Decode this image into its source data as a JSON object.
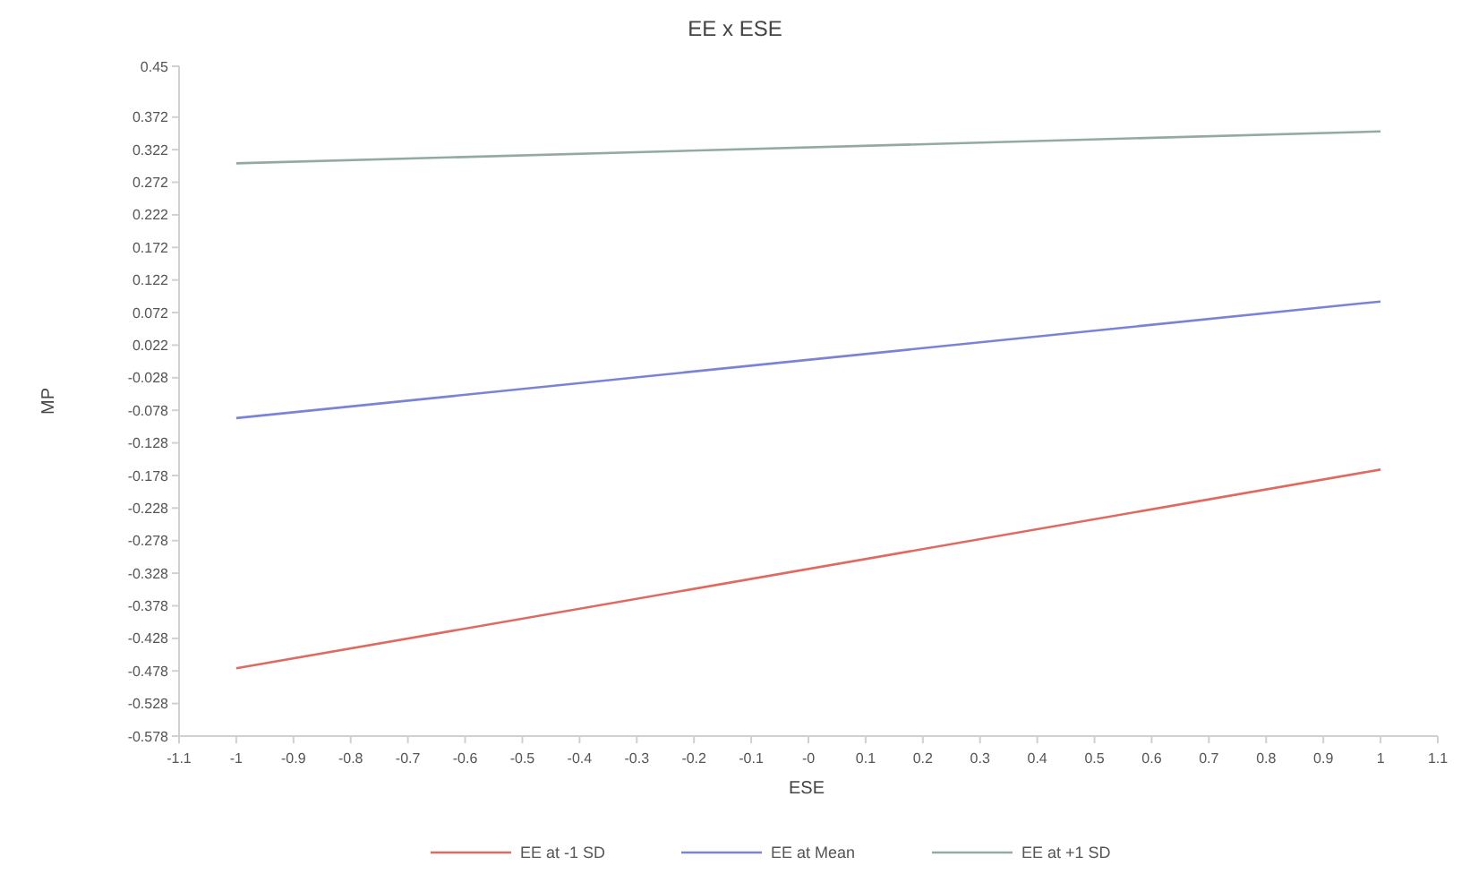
{
  "chart_data": {
    "type": "line",
    "title": "EE x ESE",
    "xlabel": "ESE",
    "ylabel": "MP",
    "x": [
      -1,
      1
    ],
    "series": [
      {
        "name": "EE at -1 SD",
        "color": "#e06a62",
        "values": [
          -0.474,
          -0.169
        ]
      },
      {
        "name": "EE at Mean",
        "color": "#7b83d6",
        "values": [
          -0.09,
          0.089
        ]
      },
      {
        "name": "EE at +1 SD",
        "color": "#93aaa3",
        "values": [
          0.301,
          0.35
        ]
      }
    ],
    "xlim": [
      -1.1,
      1.1
    ],
    "xticks": [
      -1.1,
      -1,
      -0.9,
      -0.8,
      -0.7,
      -0.6,
      -0.5,
      -0.4,
      -0.3,
      -0.2,
      -0.1,
      {
        "value": 0,
        "label": "-0"
      },
      0.1,
      0.2,
      0.3,
      0.4,
      0.5,
      0.6,
      0.7,
      0.8,
      0.9,
      1,
      1.1
    ],
    "ylim": [
      -0.578,
      0.45
    ],
    "yticks": [
      0.45,
      0.372,
      0.322,
      0.272,
      0.222,
      0.172,
      0.122,
      0.072,
      0.022,
      -0.028,
      -0.078,
      -0.128,
      -0.178,
      -0.228,
      -0.278,
      -0.328,
      -0.378,
      -0.428,
      -0.478,
      -0.528,
      -0.578
    ],
    "legend": "bottom",
    "marker": "none",
    "line_style": "solid",
    "grid": false
  }
}
